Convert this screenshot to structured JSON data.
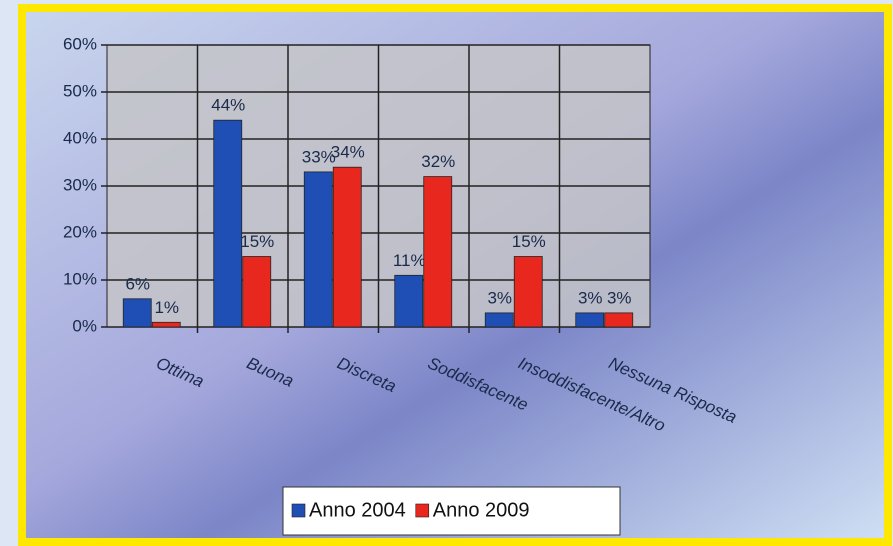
{
  "chart_data": {
    "type": "bar",
    "categories": [
      "Ottima",
      "Buona",
      "Discreta",
      "Soddisfacente",
      "Insoddisfacente/Altro",
      "Nessuna Risposta"
    ],
    "series": [
      {
        "name": "Anno 2004",
        "color": "#1f4fb5",
        "values": [
          6,
          44,
          33,
          11,
          3,
          3
        ],
        "value_labels": [
          "6%",
          "44%",
          "33%",
          "11%",
          "3%",
          "3%"
        ]
      },
      {
        "name": "Anno 2009",
        "color": "#e8281e",
        "values": [
          1,
          15,
          34,
          32,
          15,
          3
        ],
        "value_labels": [
          "1%",
          "15%",
          "34%",
          "32%",
          "15%",
          "3%"
        ]
      }
    ],
    "ylim": [
      0,
      60
    ],
    "yticks": [
      {
        "value": 0,
        "label": "0%"
      },
      {
        "value": 10,
        "label": "10%"
      },
      {
        "value": 20,
        "label": "20%"
      },
      {
        "value": 30,
        "label": "30%"
      },
      {
        "value": 40,
        "label": "40%"
      },
      {
        "value": 50,
        "label": "50%"
      },
      {
        "value": 60,
        "label": "60%"
      }
    ],
    "grid": true,
    "legend": "bottom"
  }
}
